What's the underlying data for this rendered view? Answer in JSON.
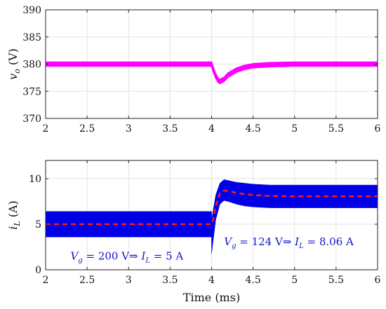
{
  "chart_data": [
    {
      "type": "line",
      "ylabel_var": "v",
      "ylabel_sub": "o",
      "ylabel_unit": "(V)",
      "xlim": [
        2,
        6
      ],
      "ylim": [
        370,
        390
      ],
      "xticks": [
        "2",
        "2.5",
        "3",
        "3.5",
        "4",
        "4.5",
        "5",
        "5.5",
        "6"
      ],
      "yticks": [
        "370",
        "375",
        "380",
        "385",
        "390"
      ],
      "grid": true,
      "series": [
        {
          "color": "#ff00ff",
          "style": "ripple-band",
          "x": [
            2.0,
            4.0,
            4.02,
            4.05,
            4.08,
            4.1,
            4.15,
            4.2,
            4.3,
            4.4,
            4.5,
            4.7,
            5.0,
            6.0
          ],
          "y": [
            380,
            380,
            379.0,
            377.8,
            377.0,
            376.8,
            377.2,
            378.0,
            378.9,
            379.4,
            379.7,
            379.9,
            380,
            380
          ],
          "ripple": 0.35
        }
      ]
    },
    {
      "type": "line",
      "ylabel_var": "i",
      "ylabel_sub": "L",
      "ylabel_unit": "(A)",
      "xlabel": "Time (ms)",
      "xlim": [
        2,
        6
      ],
      "ylim": [
        0,
        12
      ],
      "xticks": [
        "2",
        "2.5",
        "3",
        "3.5",
        "4",
        "4.5",
        "5",
        "5.5",
        "6"
      ],
      "yticks": [
        "0",
        "5",
        "10"
      ],
      "grid": true,
      "series": [
        {
          "color": "#0000e6",
          "style": "band",
          "x": [
            2.0,
            4.0,
            4.0,
            4.05,
            4.1,
            4.15,
            4.2,
            4.3,
            4.4,
            4.5,
            4.7,
            5.0,
            6.0
          ],
          "upper": [
            6.4,
            6.4,
            5.5,
            8.2,
            9.5,
            9.9,
            9.8,
            9.6,
            9.5,
            9.4,
            9.3,
            9.3,
            9.3
          ],
          "lower": [
            3.6,
            3.6,
            1.8,
            5.5,
            7.2,
            7.6,
            7.5,
            7.2,
            7.0,
            6.9,
            6.8,
            6.8,
            6.8
          ]
        },
        {
          "color": "#ff1a1a",
          "style": "dashed",
          "x": [
            2.0,
            4.0,
            4.02,
            4.05,
            4.1,
            4.15,
            4.2,
            4.3,
            4.4,
            4.5,
            4.7,
            5.0,
            6.0
          ],
          "y": [
            5.0,
            5.0,
            5.5,
            7.0,
            8.4,
            8.7,
            8.65,
            8.45,
            8.3,
            8.2,
            8.1,
            8.06,
            8.06
          ]
        }
      ],
      "annotations": [
        {
          "at": [
            2.3,
            1.1
          ],
          "parts": [
            [
              "it",
              "V"
            ],
            [
              "sub",
              "g"
            ],
            [
              "t",
              " = 200 V⇒ "
            ],
            [
              "it",
              "I"
            ],
            [
              "sub",
              "L"
            ],
            [
              "t",
              " = 5 A"
            ]
          ]
        },
        {
          "at": [
            4.15,
            2.7
          ],
          "parts": [
            [
              "it",
              "V"
            ],
            [
              "sub",
              "g"
            ],
            [
              "t",
              " = 124 V⇒ "
            ],
            [
              "it",
              "I"
            ],
            [
              "sub",
              "L"
            ],
            [
              "t",
              " = 8.06 A"
            ]
          ]
        }
      ]
    }
  ]
}
